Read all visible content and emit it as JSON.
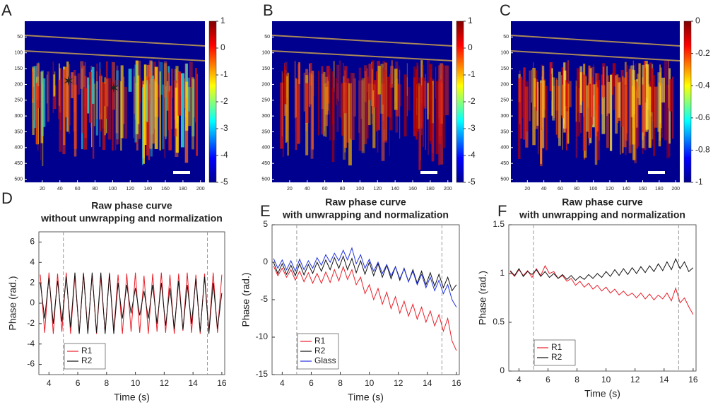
{
  "chart_data": [
    {
      "type": "heatmap",
      "label": "A",
      "xlim": [
        0,
        205
      ],
      "xticks": [
        20,
        40,
        60,
        80,
        100,
        120,
        140,
        160,
        180,
        200
      ],
      "ylim": [
        0,
        510
      ],
      "yticks": [
        50,
        100,
        150,
        200,
        250,
        300,
        350,
        400,
        450,
        500
      ],
      "clim": [
        -5,
        1
      ],
      "cticks": [
        -5,
        -4,
        -3,
        -2,
        -1,
        0,
        1
      ]
    },
    {
      "type": "heatmap",
      "label": "B",
      "xlim": [
        0,
        205
      ],
      "xticks": [
        20,
        40,
        60,
        80,
        100,
        120,
        140,
        160,
        180,
        200
      ],
      "ylim": [
        0,
        510
      ],
      "yticks": [
        50,
        100,
        150,
        200,
        250,
        300,
        350,
        400,
        450,
        500
      ],
      "clim": [
        -5,
        1
      ],
      "cticks": [
        -5,
        -4,
        -3,
        -2,
        -1,
        0,
        1
      ]
    },
    {
      "type": "heatmap",
      "label": "C",
      "xlim": [
        0,
        205
      ],
      "xticks": [
        20,
        40,
        60,
        80,
        100,
        120,
        140,
        160,
        180,
        200
      ],
      "ylim": [
        0,
        510
      ],
      "yticks": [
        50,
        100,
        150,
        200,
        250,
        300,
        350,
        400,
        450,
        500
      ],
      "clim": [
        -1,
        0
      ],
      "cticks": [
        -1,
        -0.8,
        -0.6,
        -0.4,
        -0.2,
        0
      ]
    },
    {
      "type": "line",
      "label": "D",
      "title": [
        "Raw phase curve",
        "without unwrapping and normalization"
      ],
      "xlabel": "Time (s)",
      "ylabel": "Phase (rad.)",
      "xlim": [
        3.3,
        16.2
      ],
      "xticks": [
        4,
        6,
        8,
        10,
        12,
        14,
        16
      ],
      "ylim": [
        -7,
        7
      ],
      "yticks": [
        -6,
        -4,
        -2,
        0,
        2,
        4,
        6
      ],
      "vlines": [
        5,
        15
      ],
      "legend": "lower left",
      "x": [
        3.4,
        3.7,
        4.0,
        4.3,
        4.6,
        4.9,
        5.2,
        5.5,
        5.8,
        6.1,
        6.4,
        6.7,
        7.0,
        7.3,
        7.6,
        7.9,
        8.2,
        8.5,
        8.8,
        9.1,
        9.4,
        9.7,
        10.0,
        10.3,
        10.6,
        10.9,
        11.2,
        11.5,
        11.8,
        12.1,
        12.4,
        12.7,
        13.0,
        13.3,
        13.6,
        13.9,
        14.2,
        14.5,
        14.8,
        15.1,
        15.4,
        15.7,
        16.0
      ],
      "series": [
        {
          "name": "R1",
          "color": "#e8202a",
          "values": [
            2.8,
            -2.9,
            3.0,
            -3.0,
            2.9,
            -2.8,
            3.0,
            -3.0,
            2.7,
            -2.9,
            3.0,
            -2.8,
            2.9,
            -3.0,
            2.6,
            -2.9,
            3.0,
            -2.7,
            2.8,
            -3.0,
            2.9,
            -2.8,
            3.0,
            -2.9,
            2.7,
            -3.0,
            2.9,
            -2.8,
            3.0,
            -2.9,
            2.8,
            -3.0,
            2.9,
            -2.7,
            3.0,
            -2.9,
            2.8,
            -3.0,
            2.9,
            -2.8,
            3.0,
            -2.9,
            2.8
          ]
        },
        {
          "name": "R2",
          "color": "#111111",
          "values": [
            2.0,
            -1.5,
            2.5,
            -2.0,
            2.2,
            -1.8,
            2.6,
            -2.4,
            3.0,
            -3.0,
            2.9,
            -3.0,
            3.0,
            -2.9,
            3.0,
            -3.0,
            2.9,
            -3.0,
            2.0,
            -1.5,
            1.8,
            -1.0,
            1.5,
            -1.2,
            1.2,
            -1.5,
            1.8,
            -2.0,
            2.0,
            -2.2,
            1.5,
            -2.5,
            2.2,
            -2.6,
            1.8,
            -2.0,
            2.4,
            -2.8,
            2.6,
            -3.0,
            2.0,
            -2.5,
            1.0
          ]
        }
      ]
    },
    {
      "type": "line",
      "label": "E",
      "title": [
        "Raw phase curve",
        "with unwrapping and normalization"
      ],
      "xlabel": "Time (s)",
      "ylabel": "Phase (rad.)",
      "xlim": [
        3.3,
        16.2
      ],
      "xticks": [
        4,
        6,
        8,
        10,
        12,
        14,
        16
      ],
      "ylim": [
        -15,
        5
      ],
      "yticks": [
        -15,
        -10,
        -5,
        0,
        5
      ],
      "vlines": [
        5,
        15
      ],
      "legend": "lower left",
      "x": [
        3.4,
        3.7,
        4.0,
        4.3,
        4.6,
        4.9,
        5.2,
        5.5,
        5.8,
        6.1,
        6.4,
        6.7,
        7.0,
        7.3,
        7.6,
        7.9,
        8.2,
        8.5,
        8.8,
        9.1,
        9.4,
        9.7,
        10.0,
        10.3,
        10.6,
        10.9,
        11.2,
        11.5,
        11.8,
        12.1,
        12.4,
        12.7,
        13.0,
        13.3,
        13.6,
        13.9,
        14.2,
        14.5,
        14.8,
        15.1,
        15.4,
        15.7,
        16.0
      ],
      "series": [
        {
          "name": "R1",
          "color": "#e8202a",
          "values": [
            -0.5,
            -1.8,
            -0.8,
            -2.0,
            -1.0,
            -2.4,
            -1.2,
            -2.6,
            -1.4,
            -2.8,
            -1.5,
            -2.8,
            -1.3,
            -2.7,
            -1.0,
            -2.5,
            -0.6,
            -2.3,
            -1.0,
            -3.0,
            -2.0,
            -4.2,
            -3.0,
            -5.0,
            -3.5,
            -5.6,
            -4.0,
            -6.2,
            -4.6,
            -6.8,
            -5.2,
            -7.2,
            -5.6,
            -7.6,
            -6.0,
            -8.0,
            -6.5,
            -8.5,
            -7.0,
            -9.2,
            -7.5,
            -10.5,
            -11.8
          ]
        },
        {
          "name": "R2",
          "color": "#111111",
          "values": [
            0.0,
            -1.5,
            -0.2,
            -1.6,
            -0.4,
            -1.8,
            -0.2,
            -1.7,
            -0.3,
            -1.5,
            0.0,
            -1.2,
            0.3,
            -1.0,
            0.6,
            -0.8,
            0.8,
            -1.0,
            0.5,
            -1.4,
            0.2,
            -1.6,
            0.0,
            -1.8,
            -0.2,
            -2.0,
            -0.4,
            -2.2,
            -0.6,
            -2.4,
            -0.8,
            -2.6,
            -1.0,
            -2.8,
            -1.2,
            -3.0,
            -1.4,
            -3.2,
            -1.6,
            -3.4,
            -2.0,
            -3.8,
            -3.0
          ]
        },
        {
          "name": "Glass",
          "color": "#2233dd",
          "values": [
            0.5,
            -0.8,
            0.3,
            -1.0,
            0.2,
            -1.2,
            0.4,
            -1.0,
            0.2,
            -0.8,
            0.6,
            -0.4,
            1.0,
            0.0,
            1.2,
            0.2,
            1.6,
            0.3,
            1.9,
            -0.2,
            1.0,
            -0.8,
            0.4,
            -1.2,
            0.0,
            -1.5,
            -0.3,
            -1.8,
            -0.6,
            -2.2,
            -0.9,
            -2.6,
            -1.2,
            -3.0,
            -1.6,
            -3.4,
            -2.0,
            -3.8,
            -2.4,
            -4.2,
            -3.0,
            -5.0,
            -6.0
          ]
        }
      ]
    },
    {
      "type": "line",
      "label": "F",
      "title": [
        "Raw phase curve",
        "with unwrapping and normalization"
      ],
      "xlabel": "Time (s)",
      "ylabel": "Phase (rad.)",
      "xlim": [
        3.3,
        16.2
      ],
      "xticks": [
        4,
        6,
        8,
        10,
        12,
        14,
        16
      ],
      "ylim": [
        0,
        1.5
      ],
      "yticks": [
        0,
        0.5,
        1,
        1.5
      ],
      "vlines": [
        5,
        15
      ],
      "legend": "lower left",
      "x": [
        3.4,
        3.7,
        4.0,
        4.3,
        4.6,
        4.9,
        5.2,
        5.5,
        5.8,
        6.1,
        6.4,
        6.7,
        7.0,
        7.3,
        7.6,
        7.9,
        8.2,
        8.5,
        8.8,
        9.1,
        9.4,
        9.7,
        10.0,
        10.3,
        10.6,
        10.9,
        11.2,
        11.5,
        11.8,
        12.1,
        12.4,
        12.7,
        13.0,
        13.3,
        13.6,
        13.9,
        14.2,
        14.5,
        14.8,
        15.1,
        15.4,
        15.7,
        16.0
      ],
      "series": [
        {
          "name": "R1",
          "color": "#e8202a",
          "values": [
            1.02,
            0.97,
            1.04,
            0.98,
            1.03,
            0.96,
            1.05,
            0.98,
            1.08,
            1.0,
            1.02,
            0.95,
            0.98,
            0.92,
            0.95,
            0.88,
            0.92,
            0.86,
            0.9,
            0.84,
            0.88,
            0.82,
            0.86,
            0.8,
            0.84,
            0.78,
            0.82,
            0.77,
            0.8,
            0.75,
            0.8,
            0.74,
            0.79,
            0.73,
            0.78,
            0.74,
            0.8,
            0.72,
            0.85,
            0.7,
            0.75,
            0.66,
            0.58
          ]
        },
        {
          "name": "R2",
          "color": "#111111",
          "values": [
            1.03,
            0.98,
            1.05,
            0.97,
            1.02,
            0.99,
            1.04,
            0.97,
            1.02,
            0.96,
            1.0,
            0.95,
            0.99,
            0.94,
            0.98,
            0.93,
            0.97,
            0.94,
            0.99,
            0.95,
            1.0,
            0.96,
            1.02,
            0.97,
            1.04,
            0.98,
            1.05,
            0.99,
            1.06,
            1.0,
            1.07,
            1.01,
            1.08,
            1.02,
            1.1,
            1.03,
            1.12,
            1.04,
            1.15,
            1.05,
            1.12,
            1.02,
            1.06
          ]
        }
      ]
    }
  ]
}
